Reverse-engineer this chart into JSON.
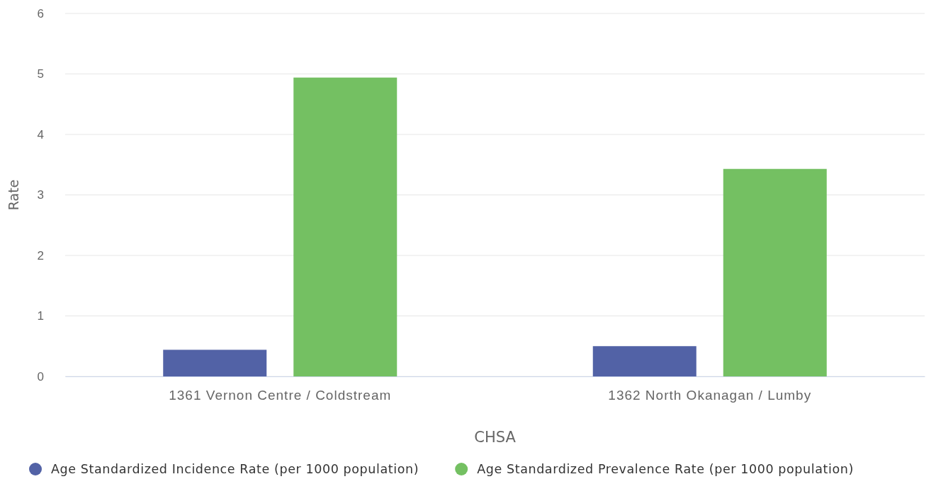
{
  "chart_data": {
    "type": "bar",
    "xlabel": "CHSA",
    "ylabel": "Rate",
    "categories": [
      "1361 Vernon Centre / Coldstream",
      "1362 North Okanagan / Lumby"
    ],
    "series": [
      {
        "name": "Age Standardized Incidence Rate (per 1000 population)",
        "color": "#5262a6",
        "values": [
          0.44,
          0.5
        ]
      },
      {
        "name": "Age Standardized Prevalence Rate (per 1000 population)",
        "color": "#74c062",
        "values": [
          4.94,
          3.43
        ]
      }
    ],
    "ylim": [
      0,
      6
    ],
    "yticks": [
      0,
      1,
      2,
      3,
      4,
      5,
      6
    ],
    "grid": "y",
    "legend": "bottom"
  }
}
